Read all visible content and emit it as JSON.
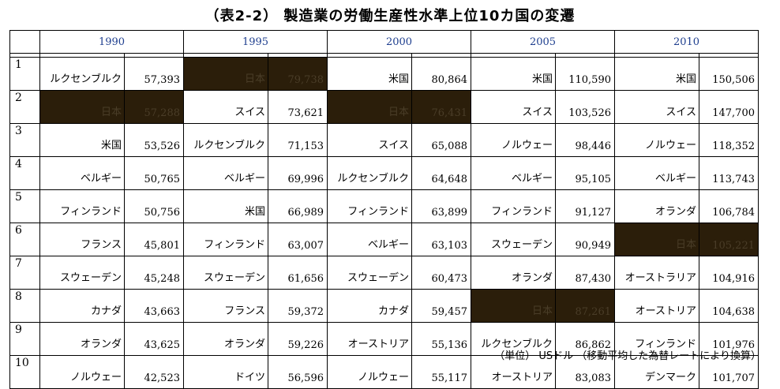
{
  "title": "（表2-2） 製造業の労働生産性水準上位10カ国の変遷",
  "years": [
    "1990",
    "1995",
    "2000",
    "2005",
    "2010"
  ],
  "rows": [
    {
      "rank": "1",
      "cells": [
        {
          "country": "ルクセンブルク",
          "value": "57,393",
          "japan": false
        },
        {
          "country": "日本",
          "value": "79,738",
          "japan": true
        },
        {
          "country": "米国",
          "value": "80,864",
          "japan": false
        },
        {
          "country": "米国",
          "value": "110,590",
          "japan": false
        },
        {
          "country": "米国",
          "value": "150,506",
          "japan": false
        }
      ]
    },
    {
      "rank": "2",
      "cells": [
        {
          "country": "日本",
          "value": "57,288",
          "japan": true
        },
        {
          "country": "スイス",
          "value": "73,621",
          "japan": false
        },
        {
          "country": "日本",
          "value": "76,431",
          "japan": true
        },
        {
          "country": "スイス",
          "value": "103,526",
          "japan": false
        },
        {
          "country": "スイス",
          "value": "147,700",
          "japan": false
        }
      ]
    },
    {
      "rank": "3",
      "cells": [
        {
          "country": "米国",
          "value": "53,526",
          "japan": false
        },
        {
          "country": "ルクセンブルク",
          "value": "71,153",
          "japan": false
        },
        {
          "country": "スイス",
          "value": "65,088",
          "japan": false
        },
        {
          "country": "ノルウェー",
          "value": "98,446",
          "japan": false
        },
        {
          "country": "ノルウェー",
          "value": "118,352",
          "japan": false
        }
      ]
    },
    {
      "rank": "4",
      "cells": [
        {
          "country": "ベルギー",
          "value": "50,765",
          "japan": false
        },
        {
          "country": "ベルギー",
          "value": "69,996",
          "japan": false
        },
        {
          "country": "ルクセンブルク",
          "value": "64,648",
          "japan": false
        },
        {
          "country": "ベルギー",
          "value": "95,105",
          "japan": false
        },
        {
          "country": "ベルギー",
          "value": "113,743",
          "japan": false
        }
      ]
    },
    {
      "rank": "5",
      "cells": [
        {
          "country": "フィンランド",
          "value": "50,756",
          "japan": false
        },
        {
          "country": "米国",
          "value": "66,989",
          "japan": false
        },
        {
          "country": "フィンランド",
          "value": "63,899",
          "japan": false
        },
        {
          "country": "フィンランド",
          "value": "91,127",
          "japan": false
        },
        {
          "country": "オランダ",
          "value": "106,784",
          "japan": false
        }
      ]
    },
    {
      "rank": "6",
      "cells": [
        {
          "country": "フランス",
          "value": "45,801",
          "japan": false
        },
        {
          "country": "フィンランド",
          "value": "63,007",
          "japan": false
        },
        {
          "country": "ベルギー",
          "value": "63,103",
          "japan": false
        },
        {
          "country": "スウェーデン",
          "value": "90,949",
          "japan": false
        },
        {
          "country": "日本",
          "value": "105,221",
          "japan": true
        }
      ]
    },
    {
      "rank": "7",
      "cells": [
        {
          "country": "スウェーデン",
          "value": "45,248",
          "japan": false
        },
        {
          "country": "スウェーデン",
          "value": "61,656",
          "japan": false
        },
        {
          "country": "スウェーデン",
          "value": "60,473",
          "japan": false
        },
        {
          "country": "オランダ",
          "value": "87,430",
          "japan": false
        },
        {
          "country": "オーストラリア",
          "value": "104,916",
          "japan": false
        }
      ]
    },
    {
      "rank": "8",
      "cells": [
        {
          "country": "カナダ",
          "value": "43,663",
          "japan": false
        },
        {
          "country": "フランス",
          "value": "59,372",
          "japan": false
        },
        {
          "country": "カナダ",
          "value": "59,457",
          "japan": false
        },
        {
          "country": "日本",
          "value": "87,261",
          "japan": true
        },
        {
          "country": "オーストリア",
          "value": "104,638",
          "japan": false
        }
      ]
    },
    {
      "rank": "9",
      "cells": [
        {
          "country": "オランダ",
          "value": "43,625",
          "japan": false
        },
        {
          "country": "オランダ",
          "value": "59,226",
          "japan": false
        },
        {
          "country": "オーストリア",
          "value": "55,136",
          "japan": false
        },
        {
          "country": "ルクセンブルク",
          "value": "86,862",
          "japan": false
        },
        {
          "country": "フィンランド",
          "value": "101,976",
          "japan": false
        }
      ]
    },
    {
      "rank": "10",
      "cells": [
        {
          "country": "ノルウェー",
          "value": "42,523",
          "japan": false
        },
        {
          "country": "ドイツ",
          "value": "56,596",
          "japan": false
        },
        {
          "country": "ノルウェー",
          "value": "55,117",
          "japan": false
        },
        {
          "country": "オーストリア",
          "value": "83,083",
          "japan": false
        },
        {
          "country": "デンマーク",
          "value": "101,707",
          "japan": false
        }
      ]
    }
  ],
  "footer": "（単位） USドル （移動平均した為替レートにより換算）",
  "colors": {
    "highlight": "#2b1e0a",
    "header_text": "#1f3f8f"
  }
}
